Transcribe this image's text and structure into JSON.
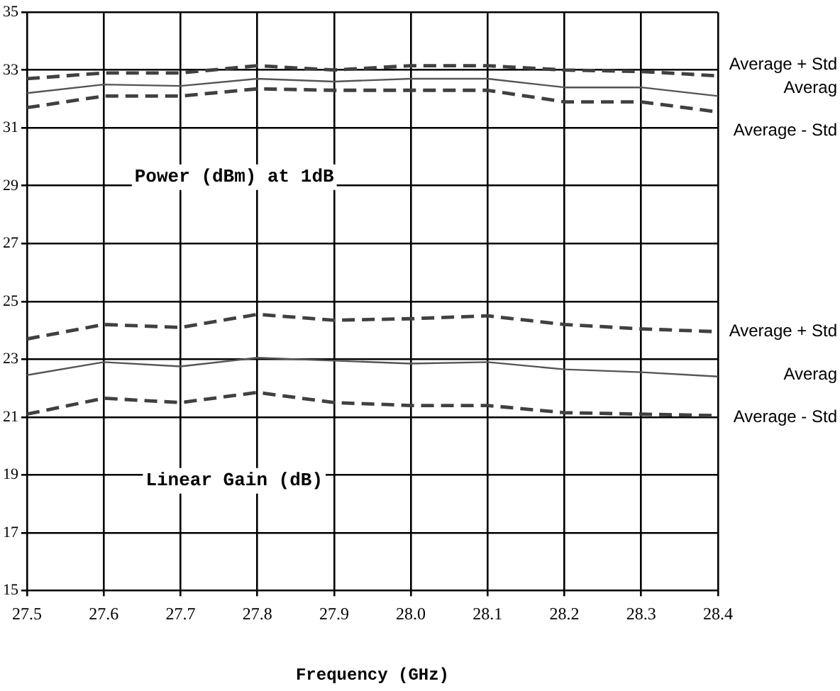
{
  "chart_data": {
    "type": "line",
    "xlabel": "Frequency (GHz)",
    "x": [
      27.5,
      27.6,
      27.7,
      27.8,
      27.9,
      28.0,
      28.1,
      28.2,
      28.3,
      28.4
    ],
    "series": [
      {
        "name": "Average + Std",
        "color": "#404040",
        "line_style": "dashed",
        "values": [
          32.7,
          32.9,
          32.9,
          33.15,
          33.0,
          33.15,
          33.15,
          33.0,
          32.95,
          32.8
        ]
      },
      {
        "name": "Averag",
        "color": "#555555",
        "line_style": "solid",
        "values": [
          32.2,
          32.5,
          32.45,
          32.7,
          32.6,
          32.7,
          32.7,
          32.4,
          32.4,
          32.1
        ]
      },
      {
        "name": "Average - Std",
        "color": "#404040",
        "line_style": "dashed",
        "values": [
          31.7,
          32.1,
          32.1,
          32.35,
          32.3,
          32.3,
          32.3,
          31.9,
          31.9,
          31.55
        ]
      },
      {
        "name": "Average + Std",
        "color": "#404040",
        "line_style": "dashed",
        "values": [
          23.7,
          24.2,
          24.1,
          24.55,
          24.35,
          24.4,
          24.5,
          24.2,
          24.05,
          23.95
        ]
      },
      {
        "name": "Averag",
        "color": "#555555",
        "line_style": "solid",
        "values": [
          22.45,
          22.9,
          22.75,
          23.05,
          22.95,
          22.85,
          22.9,
          22.65,
          22.55,
          22.4
        ]
      },
      {
        "name": "Average - Std",
        "color": "#404040",
        "line_style": "dashed",
        "values": [
          21.1,
          21.65,
          21.5,
          21.85,
          21.5,
          21.4,
          21.4,
          21.15,
          21.1,
          21.05
        ]
      }
    ],
    "annotations": [
      "Power (dBm) at 1dB",
      "Linear Gain (dB)"
    ],
    "xlim": [
      27.5,
      28.4
    ],
    "xticks": [
      27.5,
      27.6,
      27.7,
      27.8,
      27.9,
      {
        "value": 28,
        "label": "28.0"
      },
      28.1,
      28.2,
      28.3,
      28.4
    ],
    "ylim": [
      15,
      35
    ],
    "yticks": [
      15,
      17,
      19,
      21,
      23,
      25,
      27,
      29,
      31,
      33,
      35
    ],
    "grid": true,
    "marker": "none",
    "legend": false
  }
}
